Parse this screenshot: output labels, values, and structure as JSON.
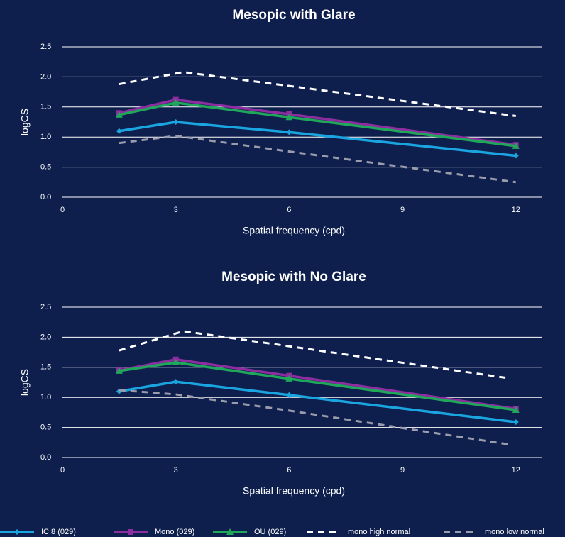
{
  "chart_data": [
    {
      "type": "line",
      "title": "Mesopic with Glare",
      "xlabel": "Spatial frequency (cpd)",
      "ylabel": "logCS",
      "xlim": [
        0,
        12.7
      ],
      "xticks": [
        0,
        3,
        6,
        9,
        12
      ],
      "ylim": [
        0,
        2.5
      ],
      "yticks": [
        {
          "value": 0,
          "label": "0.0"
        },
        0.5,
        {
          "value": 1,
          "label": "1.0"
        },
        1.5,
        {
          "value": 2,
          "label": "2.0"
        },
        2.5
      ],
      "grid": true,
      "series": [
        {
          "name": "IC 8 (029)",
          "color": "#1ba5e0",
          "marker": "diamond",
          "x": [
            1.5,
            3,
            6,
            12
          ],
          "values": [
            1.1,
            1.25,
            1.08,
            0.69
          ]
        },
        {
          "name": "Mono (029)",
          "color": "#8e2da0",
          "marker": "square",
          "x": [
            1.5,
            3,
            6,
            12
          ],
          "values": [
            1.4,
            1.62,
            1.38,
            0.87
          ]
        },
        {
          "name": "OU (029)",
          "color": "#1fa85a",
          "marker": "triangle",
          "x": [
            1.5,
            3,
            6,
            12
          ],
          "values": [
            1.37,
            1.57,
            1.33,
            0.85
          ]
        },
        {
          "name": "mono high normal",
          "color": "#ffffff",
          "dashed": true,
          "x": [
            1.5,
            3.2,
            6,
            12
          ],
          "values": [
            1.88,
            2.08,
            1.85,
            1.35
          ]
        },
        {
          "name": "mono low normal",
          "color": "#9a9cab",
          "dashed": true,
          "x": [
            1.5,
            3,
            6,
            12
          ],
          "values": [
            0.9,
            1.02,
            0.76,
            0.25
          ]
        }
      ]
    },
    {
      "type": "line",
      "title": "Mesopic with No Glare",
      "xlabel": "Spatial frequency (cpd)",
      "ylabel": "logCS",
      "xlim": [
        0,
        12.7
      ],
      "xticks": [
        0,
        3,
        6,
        9,
        12
      ],
      "ylim": [
        0,
        2.5
      ],
      "yticks": [
        {
          "value": 0,
          "label": "0.0"
        },
        0.5,
        {
          "value": 1,
          "label": "1.0"
        },
        1.5,
        {
          "value": 2,
          "label": "2.0"
        },
        2.5
      ],
      "grid": true,
      "series": [
        {
          "name": "IC 8 (029)",
          "color": "#1ba5e0",
          "marker": "diamond",
          "x": [
            1.5,
            3,
            6,
            12
          ],
          "values": [
            1.1,
            1.26,
            1.04,
            0.59
          ]
        },
        {
          "name": "Mono (029)",
          "color": "#8e2da0",
          "marker": "square",
          "x": [
            1.5,
            3,
            6,
            12
          ],
          "values": [
            1.45,
            1.63,
            1.36,
            0.81
          ]
        },
        {
          "name": "OU (029)",
          "color": "#1fa85a",
          "marker": "triangle",
          "x": [
            1.5,
            3,
            6,
            12
          ],
          "values": [
            1.44,
            1.58,
            1.31,
            0.79
          ]
        },
        {
          "name": "mono high normal",
          "color": "#ffffff",
          "dashed": true,
          "x": [
            1.5,
            3.2,
            6,
            11.8
          ],
          "values": [
            1.78,
            2.1,
            1.85,
            1.32
          ]
        },
        {
          "name": "mono low normal",
          "color": "#9a9cab",
          "dashed": true,
          "x": [
            1.5,
            3,
            6,
            11.8
          ],
          "values": [
            1.12,
            1.05,
            0.78,
            0.22
          ]
        }
      ]
    }
  ]
}
